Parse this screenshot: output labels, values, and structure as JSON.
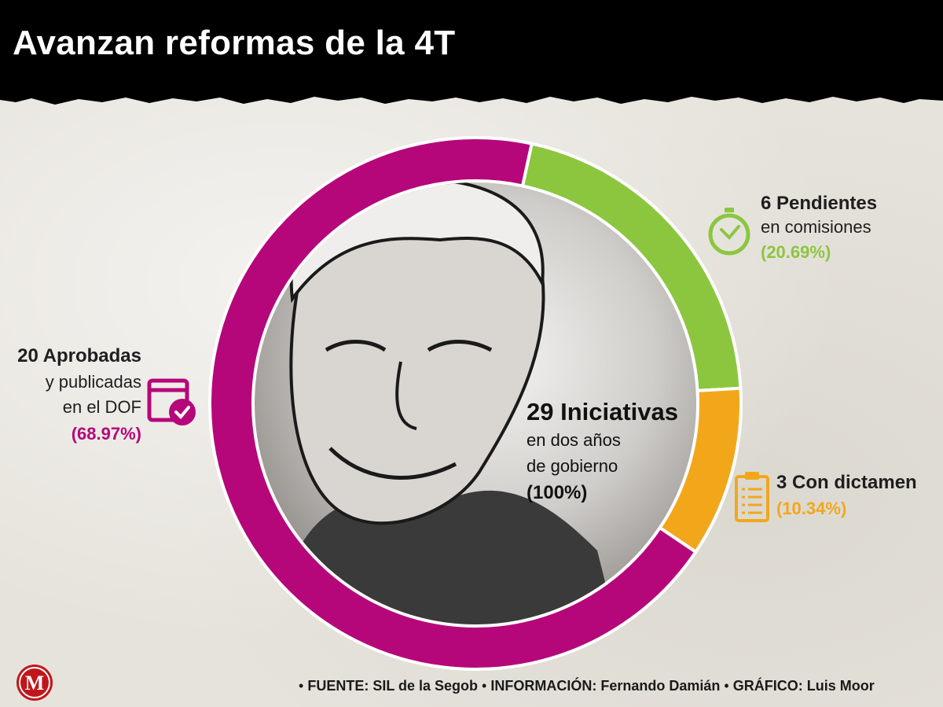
{
  "header": {
    "title": "Avanzan reformas de la 4T"
  },
  "colors": {
    "magenta": "#b5077a",
    "green": "#8cc63f",
    "yellow": "#f2a71b",
    "header_bg": "#000000"
  },
  "chart_data": {
    "type": "pie",
    "total": {
      "value": 29,
      "title": "29 Iniciativas",
      "line1": "en dos años",
      "line2": "de gobierno",
      "percent": "(100%)"
    },
    "slices": [
      {
        "name": "Aprobadas y publicadas en el DOF",
        "value": 20,
        "percent": 68.97,
        "color": "#b5077a"
      },
      {
        "name": "Pendientes en comisiones",
        "value": 6,
        "percent": 20.69,
        "color": "#8cc63f"
      },
      {
        "name": "Con dictamen",
        "value": 3,
        "percent": 10.34,
        "color": "#f2a71b"
      }
    ]
  },
  "labels": {
    "green": {
      "line1": "6 Pendientes",
      "line2": "en comisiones",
      "percent": "(20.69%)",
      "icon": "clock-icon"
    },
    "yellow": {
      "line1": "3 Con dictamen",
      "percent": "(10.34%)",
      "icon": "clipboard-icon"
    },
    "magenta": {
      "line1": "20 Aprobadas",
      "line2": "y publicadas",
      "line3": "en el DOF",
      "percent": "(68.97%)",
      "icon": "calendar-check-icon"
    }
  },
  "footer": {
    "fuente": "FUENTE: SIL de la Segob",
    "informacion": "INFORMACIÓN: Fernando Damián",
    "grafico": "GRÁFICO: Luis Moor",
    "bullet": "•"
  },
  "logo": {
    "letter": "M"
  }
}
